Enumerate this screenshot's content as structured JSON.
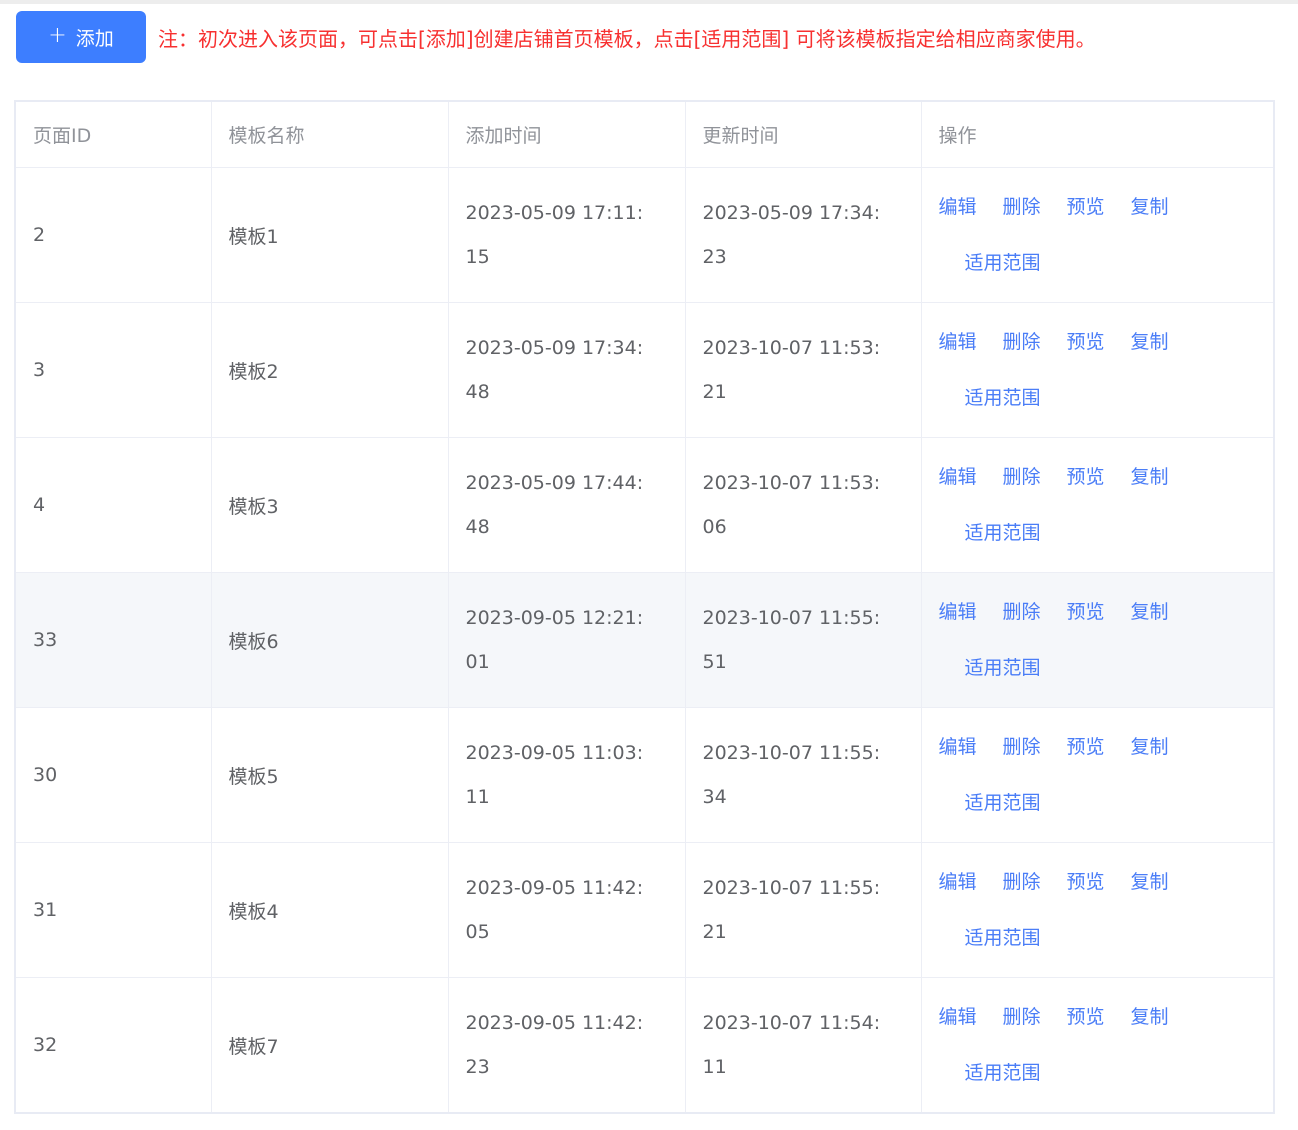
{
  "toolbar": {
    "add_button": {
      "icon_glyph": "+",
      "label": "添加"
    },
    "note": "注：初次进入该页面，可点击[添加]创建店铺首页模板，点击[适用范围] 可将该模板指定给相应商家使用。"
  },
  "table": {
    "columns": [
      {
        "key": "id",
        "label": "页面ID"
      },
      {
        "key": "name",
        "label": "模板名称"
      },
      {
        "key": "added",
        "label": "添加时间"
      },
      {
        "key": "updated",
        "label": "更新时间"
      },
      {
        "key": "ops",
        "label": "操作"
      }
    ],
    "actions": [
      {
        "name": "edit-link",
        "label": "编辑"
      },
      {
        "name": "delete-link",
        "label": "删除"
      },
      {
        "name": "preview-link",
        "label": "预览"
      },
      {
        "name": "copy-link",
        "label": "复制"
      },
      {
        "name": "scope-link",
        "label": "适用范围"
      }
    ],
    "rows": [
      {
        "id": "2",
        "name": "模板1",
        "added": "2023-05-09 17:11:15",
        "updated": "2023-05-09 17:34:23",
        "highlighted": false
      },
      {
        "id": "3",
        "name": "模板2",
        "added": "2023-05-09 17:34:48",
        "updated": "2023-10-07 11:53:21",
        "highlighted": false
      },
      {
        "id": "4",
        "name": "模板3",
        "added": "2023-05-09 17:44:48",
        "updated": "2023-10-07 11:53:06",
        "highlighted": false
      },
      {
        "id": "33",
        "name": "模板6",
        "added": "2023-09-05 12:21:01",
        "updated": "2023-10-07 11:55:51",
        "highlighted": true
      },
      {
        "id": "30",
        "name": "模板5",
        "added": "2023-09-05 11:03:11",
        "updated": "2023-10-07 11:55:34",
        "highlighted": false
      },
      {
        "id": "31",
        "name": "模板4",
        "added": "2023-09-05 11:42:05",
        "updated": "2023-10-07 11:55:21",
        "highlighted": false
      },
      {
        "id": "32",
        "name": "模板7",
        "added": "2023-09-05 11:42:23",
        "updated": "2023-10-07 11:54:11",
        "highlighted": false
      }
    ]
  },
  "colors": {
    "accent_blue": "#3d7eff",
    "link_blue": "#4a7df7",
    "note_red": "#f73030",
    "header_text": "#909399",
    "body_text": "#606266",
    "cell_border": "#eceef5",
    "outer_border": "#e8ebf4",
    "row_highlight": "#f5f7fa"
  }
}
